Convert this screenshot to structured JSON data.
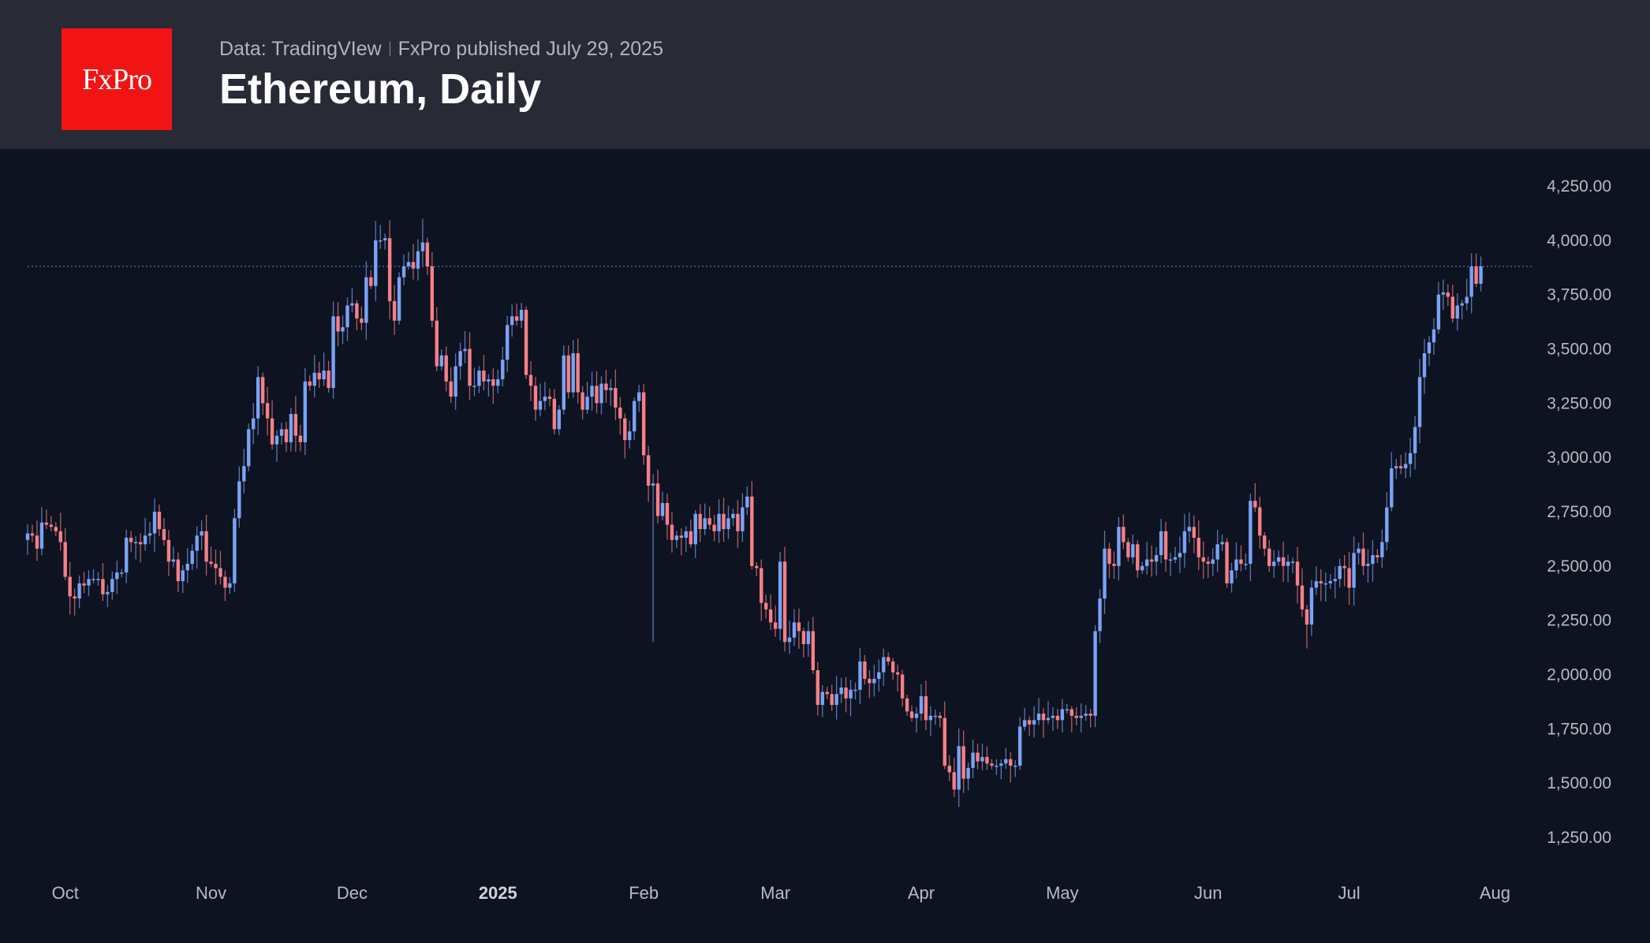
{
  "header": {
    "logo_text": "FxPro",
    "source": "Data: TradingVIew",
    "published": "FxPro published July 29, 2025",
    "title": "Ethereum, Daily"
  },
  "colors": {
    "up": "#7aa3f7",
    "down": "#f77f86",
    "header_bg": "#282a36",
    "chart_bg": "#0d1320",
    "logo_bg": "#f21414",
    "price_line": "#4d74c4"
  },
  "chart_data": {
    "type": "candlestick",
    "title": "Ethereum, Daily",
    "start_date": "2024-09-23",
    "end_date": "2025-07-29",
    "first_open": 2620,
    "ylim": [
      1100,
      4350
    ],
    "yticks": [
      {
        "value": 4250,
        "label": "4,250.00"
      },
      {
        "value": 4000,
        "label": "4,000.00"
      },
      {
        "value": 3750,
        "label": "3,750.00"
      },
      {
        "value": 3500,
        "label": "3,500.00"
      },
      {
        "value": 3250,
        "label": "3,250.00"
      },
      {
        "value": 3000,
        "label": "3,000.00"
      },
      {
        "value": 2750,
        "label": "2,750.00"
      },
      {
        "value": 2500,
        "label": "2,500.00"
      },
      {
        "value": 2250,
        "label": "2,250.00"
      },
      {
        "value": 2000,
        "label": "2,000.00"
      },
      {
        "value": 1750,
        "label": "1,750.00"
      },
      {
        "value": 1500,
        "label": "1,500.00"
      },
      {
        "value": 1250,
        "label": "1,250.00"
      }
    ],
    "xticks": [
      {
        "date": "2024-10-01",
        "label": "Oct"
      },
      {
        "date": "2024-11-01",
        "label": "Nov"
      },
      {
        "date": "2024-12-01",
        "label": "Dec"
      },
      {
        "date": "2025-01-01",
        "label": "2025",
        "bold": true
      },
      {
        "date": "2025-02-01",
        "label": "Feb"
      },
      {
        "date": "2025-03-01",
        "label": "Mar"
      },
      {
        "date": "2025-04-01",
        "label": "Apr"
      },
      {
        "date": "2025-05-01",
        "label": "May"
      },
      {
        "date": "2025-06-01",
        "label": "Jun"
      },
      {
        "date": "2025-07-01",
        "label": "Jul"
      },
      {
        "date": "2025-08-01",
        "label": "Aug"
      }
    ],
    "last_price": 3880,
    "close": [
      2650,
      2640,
      2580,
      2700,
      2690,
      2680,
      2660,
      2610,
      2450,
      2360,
      2350,
      2420,
      2410,
      2440,
      2440,
      2440,
      2370,
      2380,
      2440,
      2470,
      2470,
      2630,
      2610,
      2610,
      2600,
      2640,
      2650,
      2750,
      2670,
      2620,
      2520,
      2530,
      2430,
      2480,
      2510,
      2570,
      2640,
      2660,
      2520,
      2510,
      2490,
      2450,
      2400,
      2420,
      2720,
      2890,
      2960,
      3130,
      3180,
      3370,
      3250,
      3180,
      3060,
      3100,
      3130,
      3070,
      3200,
      3100,
      3070,
      3350,
      3330,
      3390,
      3360,
      3400,
      3320,
      3650,
      3580,
      3600,
      3700,
      3710,
      3640,
      3620,
      3830,
      3790,
      4000,
      4000,
      4010,
      3720,
      3630,
      3830,
      3880,
      3900,
      3870,
      3950,
      3990,
      3880,
      3630,
      3420,
      3470,
      3350,
      3280,
      3420,
      3490,
      3500,
      3330,
      3330,
      3400,
      3350,
      3360,
      3330,
      3360,
      3450,
      3610,
      3650,
      3630,
      3680,
      3380,
      3330,
      3220,
      3260,
      3280,
      3270,
      3130,
      3220,
      3470,
      3300,
      3480,
      3300,
      3220,
      3280,
      3330,
      3250,
      3340,
      3310,
      3320,
      3230,
      3180,
      3080,
      3120,
      3260,
      3300,
      3010,
      2870,
      2880,
      2730,
      2790,
      2690,
      2620,
      2640,
      2630,
      2660,
      2600,
      2740,
      2670,
      2720,
      2690,
      2660,
      2740,
      2670,
      2720,
      2740,
      2660,
      2770,
      2820,
      2500,
      2490,
      2330,
      2300,
      2240,
      2210,
      2520,
      2150,
      2170,
      2240,
      2200,
      2140,
      2200,
      2020,
      1860,
      1920,
      1910,
      1860,
      1910,
      1940,
      1890,
      1930,
      1930,
      2060,
      1980,
      1960,
      1980,
      2010,
      2080,
      2060,
      2010,
      2000,
      1890,
      1830,
      1800,
      1820,
      1900,
      1790,
      1810,
      1810,
      1800,
      1580,
      1550,
      1470,
      1670,
      1520,
      1570,
      1640,
      1600,
      1620,
      1590,
      1580,
      1580,
      1590,
      1610,
      1580,
      1580,
      1760,
      1790,
      1770,
      1790,
      1820,
      1790,
      1800,
      1810,
      1790,
      1840,
      1840,
      1810,
      1800,
      1810,
      1820,
      1810,
      2200,
      2350,
      2580,
      2510,
      2500,
      2680,
      2610,
      2540,
      2600,
      2480,
      2500,
      2530,
      2520,
      2550,
      2660,
      2530,
      2530,
      2540,
      2560,
      2660,
      2680,
      2630,
      2540,
      2520,
      2510,
      2530,
      2600,
      2610,
      2420,
      2480,
      2530,
      2510,
      2510,
      2800,
      2770,
      2640,
      2580,
      2500,
      2520,
      2540,
      2500,
      2520,
      2520,
      2410,
      2300,
      2230,
      2400,
      2430,
      2420,
      2420,
      2430,
      2440,
      2500,
      2490,
      2400,
      2560,
      2580,
      2500,
      2510,
      2550,
      2540,
      2610,
      2770,
      2950,
      2960,
      2950,
      2970,
      3020,
      3140,
      3370,
      3480,
      3530,
      3590,
      3750,
      3760,
      3740,
      3640,
      3700,
      3710,
      3740,
      3880,
      3800,
      3880
    ],
    "extremes": {
      "2024-12-06": {
        "high": 4090
      },
      "2024-12-16": {
        "high": 4100
      },
      "2025-02-03": {
        "low": 2150
      },
      "2025-04-09": {
        "low": 1390
      },
      "2025-06-22": {
        "low": 2120
      },
      "2025-07-28": {
        "high": 3940
      }
    }
  }
}
